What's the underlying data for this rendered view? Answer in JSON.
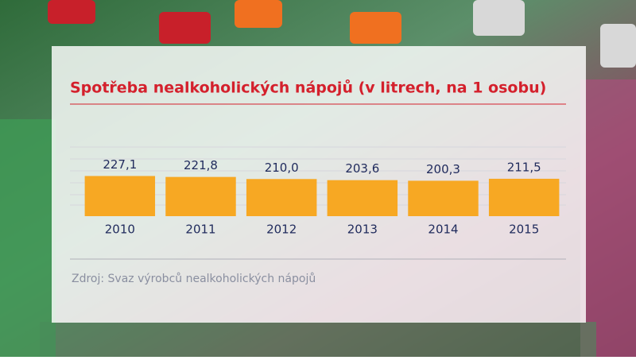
{
  "chart_data": {
    "type": "bar",
    "title": "Spotřeba nealkoholických nápojů (v litrech, na 1 osobu)",
    "categories": [
      "2010",
      "2011",
      "2012",
      "2013",
      "2014",
      "2015"
    ],
    "values": [
      227.1,
      221.8,
      210.0,
      203.6,
      200.3,
      211.5
    ],
    "value_labels": [
      "227,1",
      "221,8",
      "210,0",
      "203,6",
      "200,3",
      "211,5"
    ],
    "color": "#f7a823",
    "ylim": [
      0,
      400
    ],
    "source": "Zdroj: Svaz výrobců nealkoholických nápojů"
  }
}
